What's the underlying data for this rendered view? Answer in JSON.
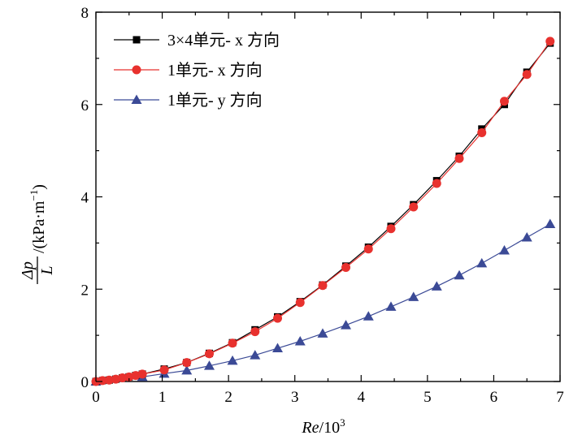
{
  "chart_data": {
    "type": "line",
    "xlabel": {
      "main": "Re",
      "sep": "/10",
      "sup": "3"
    },
    "ylabel": {
      "numerator": "Δp",
      "denominator": "L",
      "unit_prefix": "/(kPa·m",
      "unit_sup": "−1",
      "unit_suffix": ")"
    },
    "xlim": [
      0,
      7
    ],
    "ylim": [
      0,
      8
    ],
    "xticks": [
      "0",
      "1",
      "2",
      "3",
      "4",
      "5",
      "6",
      "7"
    ],
    "yticks": [
      "0",
      "2",
      "4",
      "6",
      "8"
    ],
    "grid": false,
    "legend_position": "top-left",
    "series": [
      {
        "name": "3×4单元- x 方向",
        "color": "#000000",
        "marker": "square",
        "x": [
          0.0,
          0.1,
          0.2,
          0.3,
          0.4,
          0.5,
          0.6,
          0.7,
          1.03,
          1.37,
          1.71,
          2.06,
          2.4,
          2.74,
          3.08,
          3.42,
          3.77,
          4.11,
          4.45,
          4.79,
          5.14,
          5.48,
          5.82,
          6.16,
          6.5,
          6.85
        ],
        "y": [
          0.0,
          0.02,
          0.03,
          0.05,
          0.08,
          0.1,
          0.13,
          0.16,
          0.27,
          0.41,
          0.61,
          0.84,
          1.12,
          1.4,
          1.73,
          2.09,
          2.5,
          2.91,
          3.36,
          3.83,
          4.35,
          4.88,
          5.47,
          6.0,
          6.7,
          7.33
        ]
      },
      {
        "name": "1单元- x 方向",
        "color": "#e8312e",
        "marker": "circle",
        "x": [
          0.0,
          0.1,
          0.2,
          0.3,
          0.4,
          0.5,
          0.6,
          0.7,
          1.03,
          1.37,
          1.71,
          2.06,
          2.4,
          2.74,
          3.08,
          3.42,
          3.77,
          4.11,
          4.45,
          4.79,
          5.14,
          5.48,
          5.82,
          6.16,
          6.5,
          6.85
        ],
        "y": [
          0.0,
          0.02,
          0.03,
          0.05,
          0.08,
          0.1,
          0.13,
          0.16,
          0.25,
          0.41,
          0.6,
          0.83,
          1.08,
          1.37,
          1.71,
          2.08,
          2.47,
          2.87,
          3.31,
          3.78,
          4.29,
          4.83,
          5.39,
          6.07,
          6.65,
          7.37
        ]
      },
      {
        "name": "1单元- y 方向",
        "color": "#3b4a96",
        "marker": "triangle",
        "x": [
          0.0,
          0.7,
          1.03,
          1.37,
          1.71,
          2.06,
          2.4,
          2.74,
          3.08,
          3.42,
          3.77,
          4.11,
          4.45,
          4.79,
          5.14,
          5.48,
          5.82,
          6.16,
          6.5,
          6.85
        ],
        "y": [
          0.0,
          0.1,
          0.17,
          0.24,
          0.34,
          0.45,
          0.57,
          0.72,
          0.87,
          1.04,
          1.22,
          1.41,
          1.62,
          1.83,
          2.06,
          2.3,
          2.56,
          2.84,
          3.12,
          3.41
        ]
      }
    ]
  }
}
